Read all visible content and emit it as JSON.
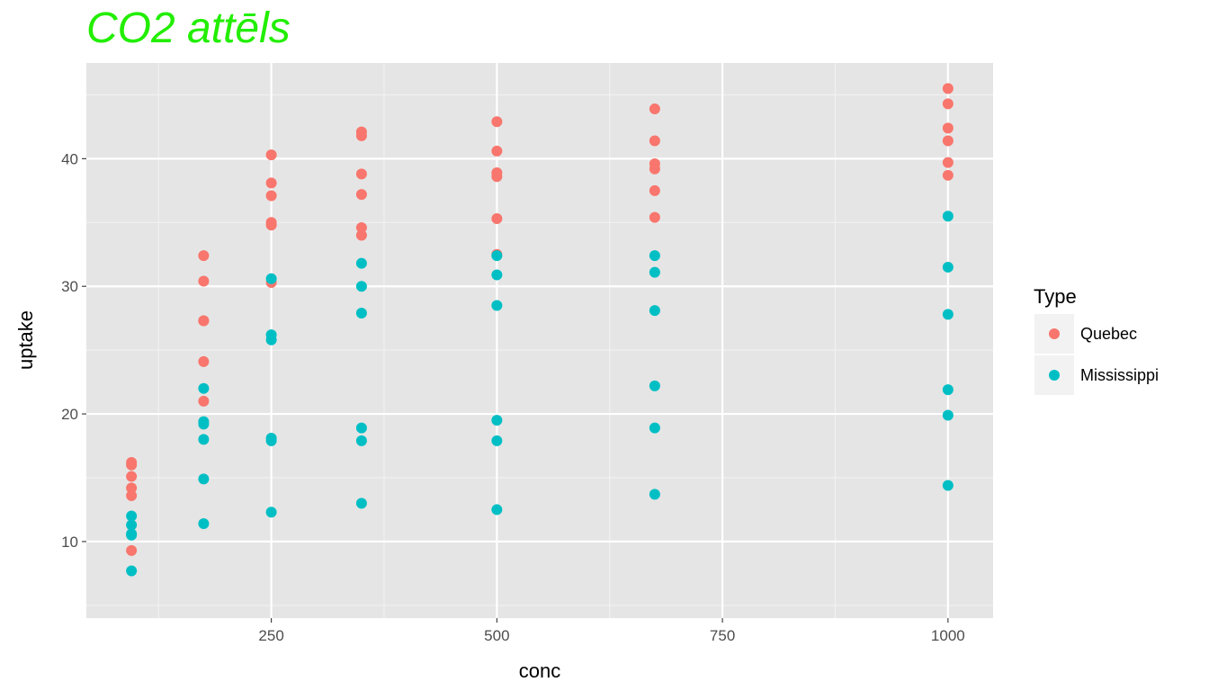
{
  "chart_data": {
    "type": "scatter",
    "title": "CO2 attēls",
    "title_color": "#22ee00",
    "xlabel": "conc",
    "ylabel": "uptake",
    "xlim": [
      45,
      1050
    ],
    "ylim": [
      4,
      47.5
    ],
    "x_ticks": [
      250,
      500,
      750,
      1000
    ],
    "y_ticks": [
      10,
      20,
      30,
      40
    ],
    "grid": true,
    "panel_background": "#e5e5e5",
    "legend": {
      "title": "Type",
      "placement": "right"
    },
    "series": [
      {
        "name": "Quebec",
        "color": "#f8766d",
        "points": [
          [
            95,
            16.2
          ],
          [
            95,
            16.0
          ],
          [
            95,
            15.1
          ],
          [
            95,
            14.2
          ],
          [
            95,
            13.6
          ],
          [
            95,
            9.3
          ],
          [
            175,
            32.4
          ],
          [
            175,
            30.4
          ],
          [
            175,
            27.3
          ],
          [
            175,
            27.3
          ],
          [
            175,
            24.1
          ],
          [
            175,
            21.0
          ],
          [
            250,
            40.3
          ],
          [
            250,
            38.1
          ],
          [
            250,
            37.1
          ],
          [
            250,
            35.0
          ],
          [
            250,
            34.8
          ],
          [
            250,
            30.3
          ],
          [
            350,
            42.1
          ],
          [
            350,
            41.8
          ],
          [
            350,
            38.8
          ],
          [
            350,
            37.2
          ],
          [
            350,
            34.6
          ],
          [
            350,
            34.0
          ],
          [
            500,
            42.9
          ],
          [
            500,
            40.6
          ],
          [
            500,
            38.9
          ],
          [
            500,
            38.6
          ],
          [
            500,
            35.3
          ],
          [
            500,
            32.5
          ],
          [
            675,
            43.9
          ],
          [
            675,
            41.4
          ],
          [
            675,
            39.6
          ],
          [
            675,
            39.2
          ],
          [
            675,
            37.5
          ],
          [
            675,
            35.4
          ],
          [
            1000,
            45.5
          ],
          [
            1000,
            44.3
          ],
          [
            1000,
            42.4
          ],
          [
            1000,
            41.4
          ],
          [
            1000,
            39.7
          ],
          [
            1000,
            38.7
          ]
        ]
      },
      {
        "name": "Mississippi",
        "color": "#00bfc4",
        "points": [
          [
            95,
            12.0
          ],
          [
            95,
            11.3
          ],
          [
            95,
            10.6
          ],
          [
            95,
            10.5
          ],
          [
            95,
            7.7
          ],
          [
            175,
            22.0
          ],
          [
            175,
            19.4
          ],
          [
            175,
            19.2
          ],
          [
            175,
            18.0
          ],
          [
            175,
            14.9
          ],
          [
            175,
            11.4
          ],
          [
            250,
            30.6
          ],
          [
            250,
            26.2
          ],
          [
            250,
            25.8
          ],
          [
            250,
            18.1
          ],
          [
            250,
            17.9
          ],
          [
            250,
            12.3
          ],
          [
            350,
            31.8
          ],
          [
            350,
            30.0
          ],
          [
            350,
            27.9
          ],
          [
            350,
            18.9
          ],
          [
            350,
            17.9
          ],
          [
            350,
            13.0
          ],
          [
            500,
            32.4
          ],
          [
            500,
            30.9
          ],
          [
            500,
            28.5
          ],
          [
            500,
            19.5
          ],
          [
            500,
            17.9
          ],
          [
            500,
            12.5
          ],
          [
            675,
            32.4
          ],
          [
            675,
            31.1
          ],
          [
            675,
            28.1
          ],
          [
            675,
            22.2
          ],
          [
            675,
            18.9
          ],
          [
            675,
            13.7
          ],
          [
            1000,
            35.5
          ],
          [
            1000,
            31.5
          ],
          [
            1000,
            27.8
          ],
          [
            1000,
            21.9
          ],
          [
            1000,
            19.9
          ],
          [
            1000,
            14.4
          ]
        ]
      }
    ]
  }
}
